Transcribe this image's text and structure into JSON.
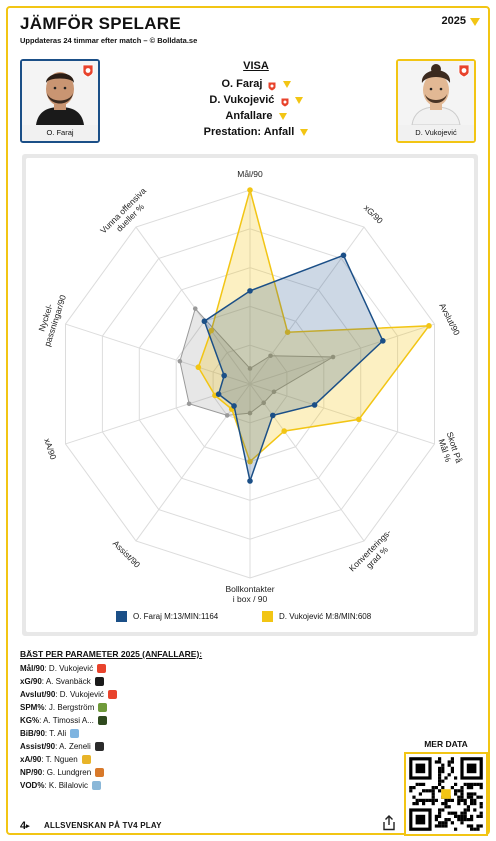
{
  "header": {
    "title": "JÄMFÖR SPELARE",
    "subtitle": "Uppdateras 24 timmar efter match – © Bolldata.se",
    "year": "2025"
  },
  "players": {
    "left": {
      "name": "O. Faraj",
      "color": "#1b4f87"
    },
    "right": {
      "name": "D. Vukojević",
      "color": "#f2c514"
    }
  },
  "visa": {
    "title": "VISA",
    "player1": "O. Faraj",
    "player2": "D. Vukojević",
    "position": "Anfallare",
    "performance": "Prestation: Anfall"
  },
  "chart_data": {
    "type": "radar",
    "axes": [
      "Mål/90",
      "xG/90",
      "Avslut/90",
      "Skott På Mål %",
      "Konverterings-grad %",
      "Bollkontakter i box / 90",
      "Assist/90",
      "xA/90",
      "Nyckel-passningar/90",
      "Vunna offensiva dueller %"
    ],
    "series": [
      {
        "name": "O. Faraj M:13/MIN:1164",
        "color": "#1b4f87",
        "values": [
          0.48,
          0.82,
          0.72,
          0.35,
          0.2,
          0.5,
          0.14,
          0.17,
          0.14,
          0.4
        ]
      },
      {
        "name": "D. Vukojević M:8/MIN:608",
        "color": "#f2c514",
        "values": [
          1.0,
          0.33,
          0.97,
          0.59,
          0.3,
          0.4,
          0.16,
          0.19,
          0.28,
          0.34
        ]
      }
    ],
    "reference": [
      0.08,
      0.18,
      0.45,
      0.13,
      0.12,
      0.15,
      0.2,
      0.33,
      0.38,
      0.48
    ],
    "grid_levels": 5
  },
  "best": {
    "title": "BÄST PER PARAMETER 2025 (ANFALLARE):",
    "rows": [
      {
        "param": "Mål/90",
        "player": "D. Vukojević",
        "color": "#e8432c"
      },
      {
        "param": "xG/90",
        "player": "A. Svanbäck",
        "color": "#1a1a1a"
      },
      {
        "param": "Avslut/90",
        "player": "D. Vukojević",
        "color": "#e8432c"
      },
      {
        "param": "SPM%",
        "player": "J. Bergström",
        "color": "#6f9a3a"
      },
      {
        "param": "KG%",
        "player": "A. Timossi A...",
        "color": "#2f4a1e"
      },
      {
        "param": "BiB/90",
        "player": "T. Ali",
        "color": "#7fb4e0"
      },
      {
        "param": "Assist/90",
        "player": "A. Zeneli",
        "color": "#2b2b2b"
      },
      {
        "param": "xA/90",
        "player": "T. Nguen",
        "color": "#e8b428"
      },
      {
        "param": "NP/90",
        "player": "G. Lundgren",
        "color": "#d8792a"
      },
      {
        "param": "VOD%",
        "player": "K. Bilalovic",
        "color": "#8ab7d8"
      }
    ]
  },
  "footer": {
    "logo": "4",
    "text": "ALLSVENSKAN PÅ TV4 PLAY",
    "mer_data": "MER DATA"
  }
}
